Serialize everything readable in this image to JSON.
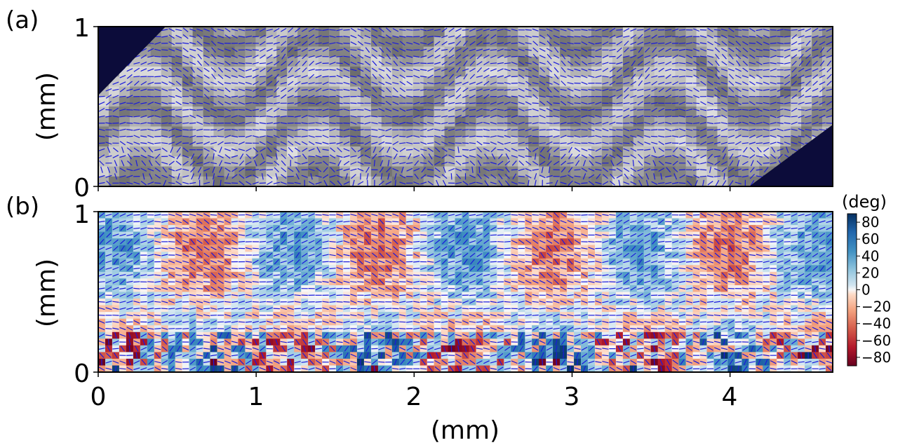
{
  "figure": {
    "x_unit_label": "(mm)",
    "colorbar_title": "(deg)"
  },
  "chart_data": [
    {
      "type": "heatmap",
      "panel_label": "(a)",
      "description_kind": "grayscale microscopy image overlaid with blue director line segments",
      "ylabel": "(mm)",
      "xlabel": "",
      "xlim": [
        0,
        4.65
      ],
      "ylim": [
        0,
        1
      ],
      "x_ticks": [
        0,
        1,
        2,
        3,
        4
      ],
      "x_tick_labels_visible": false,
      "y_ticks": [
        0,
        1
      ],
      "y_tick_labels": [
        "0",
        "1"
      ],
      "colormap": "gray",
      "overlay_color": "#1a1adc"
    },
    {
      "type": "heatmap",
      "panel_label": "(b)",
      "description_kind": "director angle map colored by angle with overlaid director line segments",
      "ylabel": "(mm)",
      "xlabel": "(mm)",
      "xlim": [
        0,
        4.65
      ],
      "ylim": [
        0,
        1
      ],
      "x_ticks": [
        0,
        1,
        2,
        3,
        4
      ],
      "x_tick_labels": [
        "0",
        "1",
        "2",
        "3",
        "4"
      ],
      "y_ticks": [
        0,
        1
      ],
      "y_tick_labels": [
        "0",
        "1"
      ],
      "colormap": "RdBu",
      "colorbar": {
        "title": "(deg)",
        "range": [
          -90,
          90
        ],
        "ticks": [
          80,
          60,
          40,
          20,
          0,
          -20,
          -40,
          -60,
          -80
        ],
        "tick_labels": [
          "80",
          "60",
          "40",
          "20",
          "0",
          "−20",
          "−40",
          "−60",
          "−80"
        ]
      },
      "overlay_color": "#1a1adc"
    }
  ],
  "colors": {
    "director_lines": "#1a1adc",
    "corner_fill": "#0c0c3a",
    "neg_extreme": "#67001f",
    "neutral": "#f7f7f7",
    "pos_extreme": "#053061"
  }
}
